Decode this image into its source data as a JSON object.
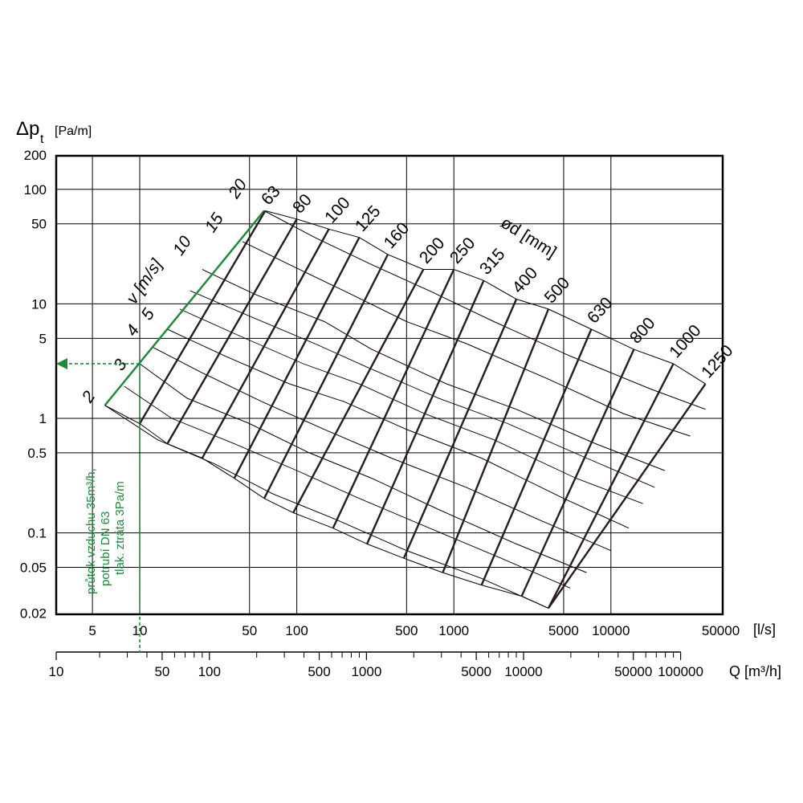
{
  "chart_data": {
    "type": "line",
    "title": "",
    "ylabel_symbol": "Δp",
    "ylabel_subscript": "t",
    "ylabel_unit": "[Pa/m]",
    "xlabel_ls": "[l/s]",
    "xlabel_q": "Q [m³/h]",
    "diameter_title": "ød [mm]",
    "velocity_title": "v [m/s]",
    "y_scale": "log",
    "x_scale": "log",
    "ylim": [
      0.02,
      200
    ],
    "xlim_ls": [
      3,
      50000
    ],
    "y_ticks": [
      {
        "v": 200,
        "label": "200"
      },
      {
        "v": 100,
        "label": "100"
      },
      {
        "v": 50,
        "label": "50"
      },
      {
        "v": 10,
        "label": "10"
      },
      {
        "v": 5,
        "label": "5"
      },
      {
        "v": 1,
        "label": "1"
      },
      {
        "v": 0.5,
        "label": "0.5"
      },
      {
        "v": 0.1,
        "label": "0.1"
      },
      {
        "v": 0.05,
        "label": "0.05"
      },
      {
        "v": 0.02,
        "label": "0.02"
      }
    ],
    "x_ticks_ls": [
      {
        "v": 5,
        "label": "5"
      },
      {
        "v": 10,
        "label": "10"
      },
      {
        "v": 50,
        "label": "50"
      },
      {
        "v": 100,
        "label": "100"
      },
      {
        "v": 500,
        "label": "500"
      },
      {
        "v": 1000,
        "label": "1000"
      },
      {
        "v": 5000,
        "label": "5000"
      },
      {
        "v": 10000,
        "label": "10000"
      },
      {
        "v": 50000,
        "label": "50000"
      }
    ],
    "x_ticks_q": [
      {
        "v": 10,
        "label": "10"
      },
      {
        "v": 50,
        "label": "50"
      },
      {
        "v": 100,
        "label": "100"
      },
      {
        "v": 500,
        "label": "500"
      },
      {
        "v": 1000,
        "label": "1000"
      },
      {
        "v": 5000,
        "label": "5000"
      },
      {
        "v": 10000,
        "label": "10000"
      },
      {
        "v": 50000,
        "label": "50000"
      },
      {
        "v": 100000,
        "label": "100000"
      }
    ],
    "q_minor_ticks": [
      20,
      30,
      40,
      60,
      70,
      80,
      90,
      200,
      300,
      400,
      600,
      700,
      800,
      900,
      2000,
      3000,
      4000,
      6000,
      7000,
      8000,
      9000,
      20000,
      30000,
      40000,
      60000,
      70000,
      80000,
      90000
    ],
    "ls_gridlines": [
      5,
      10,
      50,
      100,
      500,
      1000,
      5000,
      10000
    ],
    "py_gridlines": [
      100,
      50,
      10,
      5,
      1,
      0.5,
      0.1,
      0.05
    ],
    "diameters": [
      {
        "label": "63",
        "top": [
          63,
          65
        ],
        "bottom": [
          10,
          0.9
        ]
      },
      {
        "label": "80",
        "top": [
          100,
          55
        ],
        "bottom": [
          15,
          0.6
        ]
      },
      {
        "label": "100",
        "top": [
          160,
          45
        ],
        "bottom": [
          25,
          0.45
        ]
      },
      {
        "label": "125",
        "top": [
          250,
          38
        ],
        "bottom": [
          40,
          0.3
        ]
      },
      {
        "label": "160",
        "top": [
          380,
          27
        ],
        "bottom": [
          62,
          0.2
        ]
      },
      {
        "label": "200",
        "top": [
          640,
          20
        ],
        "bottom": [
          95,
          0.15
        ]
      },
      {
        "label": "250",
        "top": [
          1000,
          20
        ],
        "bottom": [
          170,
          0.11
        ]
      },
      {
        "label": "315",
        "top": [
          1550,
          16
        ],
        "bottom": [
          280,
          0.08
        ]
      },
      {
        "label": "400",
        "top": [
          2500,
          11
        ],
        "bottom": [
          480,
          0.06
        ]
      },
      {
        "label": "500",
        "top": [
          4000,
          9
        ],
        "bottom": [
          850,
          0.045
        ]
      },
      {
        "label": "630",
        "top": [
          7500,
          6
        ],
        "bottom": [
          1500,
          0.035
        ]
      },
      {
        "label": "800",
        "top": [
          14000,
          4
        ],
        "bottom": [
          2700,
          0.028
        ]
      },
      {
        "label": "1000",
        "top": [
          25000,
          3
        ],
        "bottom": [
          4000,
          0.022
        ]
      },
      {
        "label": "1250",
        "top": [
          40000,
          2
        ],
        "bottom": [
          4000,
          0.022
        ]
      }
    ],
    "velocity_lines": [
      {
        "label": "2",
        "points": [
          [
            6,
            1.3
          ],
          [
            13,
            0.65
          ],
          [
            30,
            0.4
          ],
          [
            70,
            0.22
          ],
          [
            180,
            0.13
          ],
          [
            500,
            0.07
          ],
          [
            1500,
            0.04
          ],
          [
            4000,
            0.022
          ]
        ]
      },
      {
        "label": "3",
        "points": [
          [
            10,
            3
          ],
          [
            20,
            1.5
          ],
          [
            50,
            0.9
          ],
          [
            120,
            0.5
          ],
          [
            300,
            0.3
          ],
          [
            800,
            0.16
          ],
          [
            2500,
            0.08
          ],
          [
            7000,
            0.045
          ]
        ]
      },
      {
        "label": "4",
        "points": [
          [
            12,
            4.2
          ],
          [
            25,
            2.5
          ],
          [
            60,
            1.4
          ],
          [
            150,
            0.8
          ],
          [
            400,
            0.45
          ],
          [
            1200,
            0.25
          ],
          [
            3500,
            0.13
          ],
          [
            10000,
            0.07
          ]
        ]
      },
      {
        "label": "5",
        "points": [
          [
            15,
            6
          ],
          [
            35,
            3.5
          ],
          [
            90,
            2
          ],
          [
            200,
            1.4
          ],
          [
            500,
            0.8
          ],
          [
            1500,
            0.45
          ],
          [
            5000,
            0.2
          ],
          [
            13000,
            0.11
          ]
        ]
      },
      {
        "label": "10",
        "points": [
          [
            25,
            20
          ],
          [
            55,
            12
          ],
          [
            150,
            7
          ],
          [
            300,
            4
          ],
          [
            900,
            2
          ],
          [
            2500,
            1.2
          ],
          [
            8000,
            0.6
          ],
          [
            22000,
            0.35
          ]
        ]
      },
      {
        "label": "15",
        "points": [
          [
            45,
            35
          ],
          [
            90,
            22
          ],
          [
            200,
            13
          ],
          [
            500,
            7
          ],
          [
            1200,
            4.5
          ],
          [
            4000,
            2.2
          ],
          [
            12000,
            1.1
          ],
          [
            32000,
            0.7
          ]
        ]
      },
      {
        "label": "20",
        "points": [
          [
            62,
            65
          ],
          [
            130,
            38
          ],
          [
            300,
            22
          ],
          [
            700,
            13
          ],
          [
            1800,
            7
          ],
          [
            5500,
            3.5
          ],
          [
            18000,
            1.8
          ],
          [
            40000,
            1.2
          ]
        ]
      }
    ],
    "velocity_minor_lines": [
      [
        [
          8,
          1.9
        ],
        [
          16,
          1.0
        ],
        [
          40,
          0.6
        ],
        [
          100,
          0.35
        ],
        [
          250,
          0.2
        ],
        [
          700,
          0.11
        ],
        [
          2000,
          0.06
        ],
        [
          5500,
          0.033
        ]
      ],
      [
        [
          18,
          9
        ],
        [
          40,
          5.5
        ],
        [
          110,
          3
        ],
        [
          250,
          2
        ],
        [
          650,
          1.1
        ],
        [
          1800,
          0.65
        ],
        [
          6000,
          0.3
        ],
        [
          16000,
          0.18
        ]
      ],
      [
        [
          21,
          13
        ],
        [
          48,
          8
        ],
        [
          130,
          4.5
        ],
        [
          280,
          2.8
        ],
        [
          800,
          1.5
        ],
        [
          2200,
          0.9
        ],
        [
          7000,
          0.45
        ],
        [
          19000,
          0.25
        ]
      ]
    ],
    "example_annotation": [
      "průtok vzduchu 35m³/h,",
      "potrubí DN 63",
      "tlak. ztráta 3Pa/m"
    ],
    "example_point": {
      "ls": 10,
      "pa_m": 3
    },
    "colors": {
      "grid": "#000000",
      "diameter_lines": "#2a1c1c",
      "velocity_lines": "#000000",
      "velocity_axis": "#1e8a3c",
      "annotation": "#1e8a3c"
    }
  }
}
